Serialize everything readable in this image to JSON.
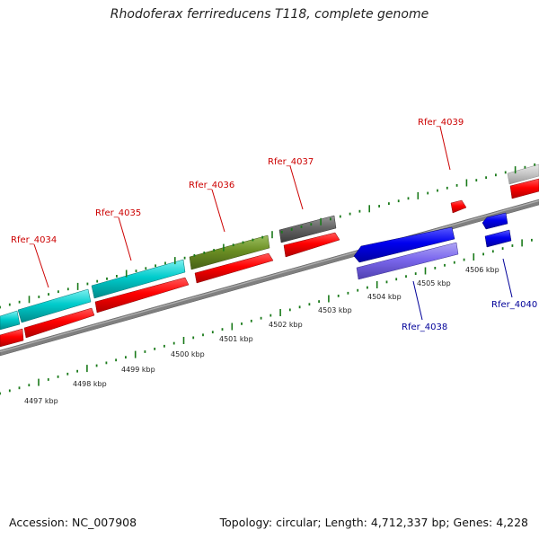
{
  "title": "Rhodoferax ferrireducens T118, complete genome",
  "footer": {
    "accession": "Accession: NC_007908",
    "summary": "Topology: circular; Length: 4,712,337 bp; Genes: 4,228"
  },
  "colors": {
    "forward_label": "#cc0000",
    "reverse_label": "#000099",
    "backbone": "#808080",
    "tick": "#1a7a1a"
  },
  "scale_labels": [
    {
      "text": "4497 kbp"
    },
    {
      "text": "4498 kbp"
    },
    {
      "text": "4499 kbp"
    },
    {
      "text": "4500 kbp"
    },
    {
      "text": "4501 kbp"
    },
    {
      "text": "4502 kbp"
    },
    {
      "text": "4503 kbp"
    },
    {
      "text": "4504 kbp"
    },
    {
      "text": "4505 kbp"
    },
    {
      "text": "4506 kbp"
    }
  ],
  "gene_labels": [
    {
      "text": "Rfer_4034",
      "strand": "forward"
    },
    {
      "text": "Rfer_4035",
      "strand": "forward"
    },
    {
      "text": "Rfer_4036",
      "strand": "forward"
    },
    {
      "text": "Rfer_4037",
      "strand": "forward"
    },
    {
      "text": "Rfer_4039",
      "strand": "forward"
    },
    {
      "text": "Rfer_4038",
      "strand": "reverse"
    },
    {
      "text": "Rfer_4040",
      "strand": "reverse"
    }
  ]
}
